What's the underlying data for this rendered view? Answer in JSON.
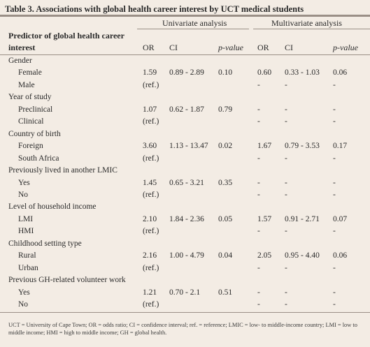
{
  "title": "Table 3. Associations with global health career interest by UCT medical students",
  "groups": {
    "univariate": "Univariate analysis",
    "multivariate": "Multivariate analysis"
  },
  "header": {
    "predictor_line1": "Predictor of global health career",
    "predictor_line2": "interest",
    "or": "OR",
    "ci": "CI",
    "p_value": "p-value",
    "or2": "OR",
    "ci2": "CI",
    "p_value2": "p-value"
  },
  "rows": [
    {
      "label": "Gender",
      "indent": false,
      "or": "",
      "ci": "",
      "p": "",
      "or2": "",
      "ci2": "",
      "p2": ""
    },
    {
      "label": "Female",
      "indent": true,
      "or": "1.59",
      "ci": "0.89 - 2.89",
      "p": "0.10",
      "or2": "0.60",
      "ci2": "0.33 - 1.03",
      "p2": "0.06"
    },
    {
      "label": "Male",
      "indent": true,
      "or": "(ref.)",
      "ci": "",
      "p": "",
      "or2": "-",
      "ci2": "-",
      "p2": "-"
    },
    {
      "label": "Year of study",
      "indent": false,
      "or": "",
      "ci": "",
      "p": "",
      "or2": "",
      "ci2": "",
      "p2": ""
    },
    {
      "label": "Preclinical",
      "indent": true,
      "or": "1.07",
      "ci": "0.62 - 1.87",
      "p": "0.79",
      "or2": "-",
      "ci2": "-",
      "p2": "-"
    },
    {
      "label": "Clinical",
      "indent": true,
      "or": "(ref.)",
      "ci": "",
      "p": "",
      "or2": "-",
      "ci2": "-",
      "p2": "-"
    },
    {
      "label": "Country of birth",
      "indent": false,
      "or": "",
      "ci": "",
      "p": "",
      "or2": "",
      "ci2": "",
      "p2": ""
    },
    {
      "label": "Foreign",
      "indent": true,
      "or": "3.60",
      "ci": "1.13 - 13.47",
      "p": "0.02",
      "or2": "1.67",
      "ci2": "0.79 - 3.53",
      "p2": "0.17"
    },
    {
      "label": "South Africa",
      "indent": true,
      "or": "(ref.)",
      "ci": "",
      "p": "",
      "or2": "-",
      "ci2": "-",
      "p2": "-"
    },
    {
      "label": "Previously lived in another LMIC",
      "indent": false,
      "or": "",
      "ci": "",
      "p": "",
      "or2": "",
      "ci2": "",
      "p2": ""
    },
    {
      "label": "Yes",
      "indent": true,
      "or": "1.45",
      "ci": "0.65 - 3.21",
      "p": "0.35",
      "or2": "-",
      "ci2": "-",
      "p2": "-"
    },
    {
      "label": "No",
      "indent": true,
      "or": "(ref.)",
      "ci": "",
      "p": "",
      "or2": "-",
      "ci2": "-",
      "p2": "-"
    },
    {
      "label": "Level of household income",
      "indent": false,
      "or": "",
      "ci": "",
      "p": "",
      "or2": "",
      "ci2": "",
      "p2": ""
    },
    {
      "label": "LMI",
      "indent": true,
      "or": "2.10",
      "ci": "1.84 - 2.36",
      "p": "0.05",
      "or2": "1.57",
      "ci2": "0.91 - 2.71",
      "p2": "0.07"
    },
    {
      "label": "HMI",
      "indent": true,
      "or": "(ref.)",
      "ci": "",
      "p": "",
      "or2": "-",
      "ci2": "-",
      "p2": "-"
    },
    {
      "label": "Childhood setting type",
      "indent": false,
      "or": "",
      "ci": "",
      "p": "",
      "or2": "",
      "ci2": "",
      "p2": ""
    },
    {
      "label": "Rural",
      "indent": true,
      "or": "2.16",
      "ci": "1.00 - 4.79",
      "p": "0.04",
      "or2": "2.05",
      "ci2": "0.95 - 4.40",
      "p2": "0.06"
    },
    {
      "label": "Urban",
      "indent": true,
      "or": "(ref.)",
      "ci": "",
      "p": "",
      "or2": "-",
      "ci2": "-",
      "p2": "-"
    },
    {
      "label": "Previous GH-related volunteer work",
      "indent": false,
      "or": "",
      "ci": "",
      "p": "",
      "or2": "",
      "ci2": "",
      "p2": ""
    },
    {
      "label": "Yes",
      "indent": true,
      "or": "1.21",
      "ci": "0.70 - 2.1",
      "p": "0.51",
      "or2": "-",
      "ci2": "-",
      "p2": "-"
    },
    {
      "label": "No",
      "indent": true,
      "or": "(ref.)",
      "ci": "",
      "p": "",
      "or2": "-",
      "ci2": "-",
      "p2": "-"
    }
  ],
  "footnote": "UCT = University of Cape Town; OR = odds ratio; CI = confidence interval; ref. = reference; LMIC = low- to middle-income country; LMI = low to middle income; HMI = high to middle income; GH = global health."
}
